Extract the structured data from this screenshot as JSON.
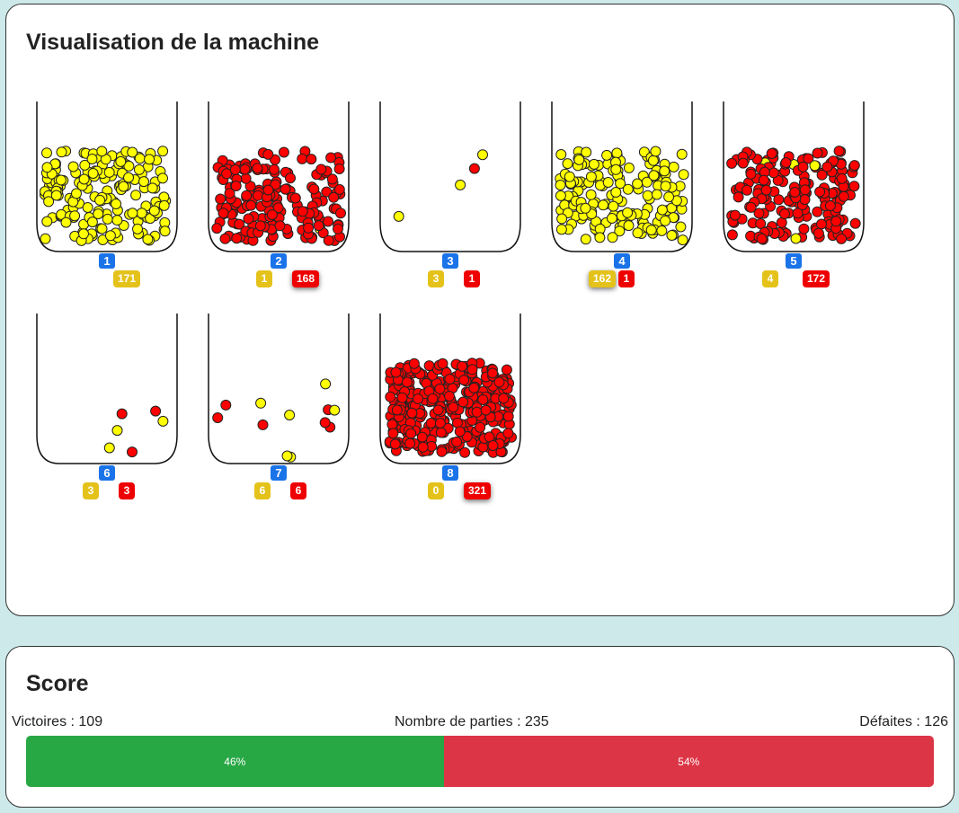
{
  "machine": {
    "title": "Visualisation de la machine",
    "colors": {
      "yellow": "#ffff00",
      "red": "#ff0000",
      "jar_stroke": "#111111",
      "bin_badge": "#1a73e8"
    },
    "bins": [
      {
        "number": "1",
        "yellow": 171,
        "red": 0,
        "yellow_label": "171",
        "red_label": ""
      },
      {
        "number": "2",
        "yellow": 1,
        "red": 168,
        "yellow_label": "1",
        "red_label": "168"
      },
      {
        "number": "3",
        "yellow": 3,
        "red": 1,
        "yellow_label": "3",
        "red_label": "1"
      },
      {
        "number": "4",
        "yellow": 162,
        "red": 1,
        "yellow_label": "162",
        "red_label": "1"
      },
      {
        "number": "5",
        "yellow": 4,
        "red": 172,
        "yellow_label": "4",
        "red_label": "172"
      },
      {
        "number": "6",
        "yellow": 3,
        "red": 3,
        "yellow_label": "3",
        "red_label": "3"
      },
      {
        "number": "7",
        "yellow": 6,
        "red": 6,
        "yellow_label": "6",
        "red_label": "6"
      },
      {
        "number": "8",
        "yellow": 0,
        "red": 321,
        "yellow_label": "0",
        "red_label": "321"
      }
    ]
  },
  "score": {
    "title": "Score",
    "wins_label": "Victoires : 109",
    "games_label": "Nombre de parties : 235",
    "losses_label": "Défaites : 126",
    "wins_percent": 46,
    "losses_percent": 54,
    "wins_percent_label": "46%",
    "losses_percent_label": "54%",
    "wins_color": "#28a745",
    "losses_color": "#dc3545"
  }
}
